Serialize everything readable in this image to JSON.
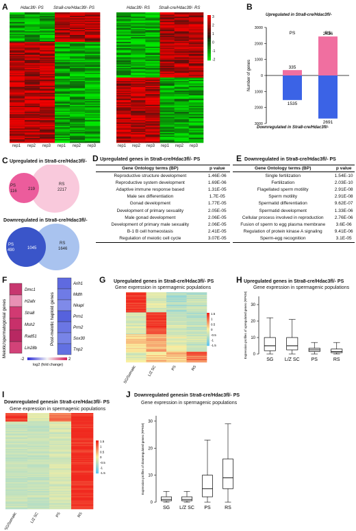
{
  "panels": {
    "A": "A",
    "B": "B",
    "C": "C",
    "D": "D",
    "E": "E",
    "F": "F",
    "G": "G",
    "H": "H",
    "I": "I",
    "J": "J"
  },
  "A": {
    "hm1": {
      "g1": "Hdac3fl/- PS",
      "g2": "Stra8-cre/Hdac3fl/- PS",
      "cols": [
        "rep1",
        "rep2",
        "rep3",
        "rep1",
        "rep2",
        "rep3"
      ]
    },
    "hm2": {
      "g1": "Hdac3fl/- RS",
      "g2": "Stra8-cre/Hdac3fl/- RS",
      "cols": [
        "rep1",
        "rep2",
        "rep3",
        "rep1",
        "rep2",
        "rep3"
      ]
    },
    "colorbar": [
      "3",
      "2",
      "1",
      "0",
      "-1",
      "-2"
    ]
  },
  "B": {
    "chart_data": {
      "type": "bar",
      "title": "Upregulated in Stra8-cre/Hdac3fl/-",
      "bottom_title": "Downregulated in Stra8-cre/Hdac3fl/-",
      "categories": [
        "PS",
        "RS"
      ],
      "series": [
        {
          "name": "Upregulated",
          "values": [
            335,
            2436
          ],
          "color": "#f06fa0"
        },
        {
          "name": "Downregulated",
          "values": [
            -1535,
            -2691
          ],
          "color": "#3b63e6"
        }
      ],
      "ylabel": "Number of genes",
      "ylim": [
        -3000,
        3000
      ],
      "yticks": [
        "3000",
        "2000",
        "1000",
        "0",
        "1000",
        "2000",
        "3000"
      ]
    }
  },
  "C": {
    "up": {
      "title": "Upregulated in Stra8-cre/Hdac3fl/-",
      "left": "PS",
      "left_n": "116",
      "overlap": "219",
      "right": "RS",
      "right_n": "2217"
    },
    "down": {
      "title": "Downregulated in Stra8-cre/Hdac3fl/-",
      "left": "PS",
      "left_n": "490",
      "overlap": "1045",
      "right": "RS",
      "right_n": "1646"
    }
  },
  "D": {
    "title": "Upregulated genes in Stra8-cre/Hdac3fl/- PS",
    "col1": "Gene Ontology terms (BP)",
    "col2": "p value",
    "rows": [
      [
        "Reproductive structure development",
        "1.46E-06"
      ],
      [
        "Reproductive system development",
        "1.69E-06"
      ],
      [
        "Adaptive immune response based",
        "1.31E-05"
      ],
      [
        "Male sex differentiation",
        "1.7E-05"
      ],
      [
        "Gonad development",
        "1.77E-05"
      ],
      [
        "Development of primary sexuality",
        "2.05E-05"
      ],
      [
        "Male gonad development",
        "2.06E-05"
      ],
      [
        "Development of primary male sexuality",
        "2.06E-05"
      ],
      [
        "B-1 B cell homeostasis",
        "2.41E-05"
      ],
      [
        "Regulation of meiotic cell cycle",
        "3.07E-05"
      ]
    ]
  },
  "E": {
    "title": "Downregulated in Stra8-cre/Hdac3fl/- PS",
    "col1": "Gene Ontology terms (BP)",
    "col2": "p value",
    "rows": [
      [
        "Single fertilization",
        "1.54E-10"
      ],
      [
        "Fertilization",
        "2.03E-10"
      ],
      [
        "Flagellated sperm motility",
        "2.91E-08"
      ],
      [
        "Sperm motility",
        "2.91E-08"
      ],
      [
        "Spermatid differentiation",
        "9.62E-07"
      ],
      [
        "Spermatid development",
        "1.33E-06"
      ],
      [
        "Cellular process involved in reproduction",
        "2.76E-06"
      ],
      [
        "Fusion of sperm to egg plasma membrane",
        "3.6E-06"
      ],
      [
        "Regulation of protein kinase A signaling",
        "9.41E-06"
      ],
      [
        "Sperm-egg recognition",
        "3.1E-05"
      ]
    ]
  },
  "F": {
    "left_label": "Meiotic/spermatogonial genes",
    "left_genes": [
      "Dmc1",
      "H2afx",
      "Stra8",
      "Msh2",
      "Rad51",
      "Lin28b"
    ],
    "right_label": "Post-meiotic haploid genes",
    "right_genes": [
      "Arih1",
      "Mdth",
      "Nkapl",
      "Prm1",
      "Prm2",
      "Sox30",
      "Tnp2"
    ],
    "scale_min": "-2",
    "scale_max": "2",
    "scale_label": "log2 (fold change)"
  },
  "G": {
    "title": "Upregulated genes in Stra8-cre/Hdac3fl/- PS",
    "subtitle": "Gene expression in spermagenic populations",
    "cols": [
      "SG/Somatic",
      "L/Z SC",
      "PS",
      "RS"
    ],
    "colorbar": [
      "1.5",
      "1",
      "0.5",
      "0",
      "-0.5",
      "-1",
      "-1.5"
    ]
  },
  "H": {
    "title": "Upregulated genes in Stra8-cre/Hdac3fl/- PS",
    "subtitle": "Gene expression in spermagenic populations",
    "chart_data": {
      "type": "box",
      "categories": [
        "SG",
        "L/Z SC",
        "PS",
        "RS"
      ],
      "ylabel": "Expression profiles of upregulated genes (RPKM)",
      "yticks": [
        "0",
        "10",
        "20",
        "30"
      ],
      "ylim": [
        0,
        35
      ],
      "boxes": [
        {
          "min": 0,
          "q1": 2,
          "median": 5,
          "q3": 10,
          "max": 22
        },
        {
          "min": 0,
          "q1": 2.5,
          "median": 5,
          "q3": 10,
          "max": 21
        },
        {
          "min": 0,
          "q1": 1.5,
          "median": 2.5,
          "q3": 3.5,
          "max": 7
        },
        {
          "min": 0,
          "q1": 0.8,
          "median": 1.5,
          "q3": 3,
          "max": 7
        }
      ]
    }
  },
  "I": {
    "title": "Downregulated genesin Stra8-cre/Hdac3fl/- PS",
    "subtitle": "Gene expression in spermagenic populations",
    "cols": [
      "SG/Somatic",
      "L/Z SC",
      "PS",
      "RS"
    ],
    "colorbar": [
      "1.5",
      "1",
      "0.5",
      "0",
      "-0.5",
      "-1",
      "-1.5"
    ]
  },
  "J": {
    "title": "Downregulated genesin Stra8-cre/Hdac3fl/- PS",
    "subtitle": "Gene expression in spermagenic populations",
    "chart_data": {
      "type": "box",
      "categories": [
        "SG",
        "L/Z SC",
        "PS",
        "RS"
      ],
      "ylabel": "Expression profiles of downregulated genes (RPKM)",
      "yticks": [
        "0",
        "10",
        "20",
        "30"
      ],
      "ylim": [
        0,
        32
      ],
      "boxes": [
        {
          "min": 0,
          "q1": 0.5,
          "median": 1,
          "q3": 2,
          "max": 4
        },
        {
          "min": 0,
          "q1": 0.5,
          "median": 1,
          "q3": 2,
          "max": 4
        },
        {
          "min": 0,
          "q1": 2,
          "median": 5,
          "q3": 10,
          "max": 23
        },
        {
          "min": 0,
          "q1": 5,
          "median": 9,
          "q3": 16,
          "max": 29
        }
      ]
    }
  }
}
